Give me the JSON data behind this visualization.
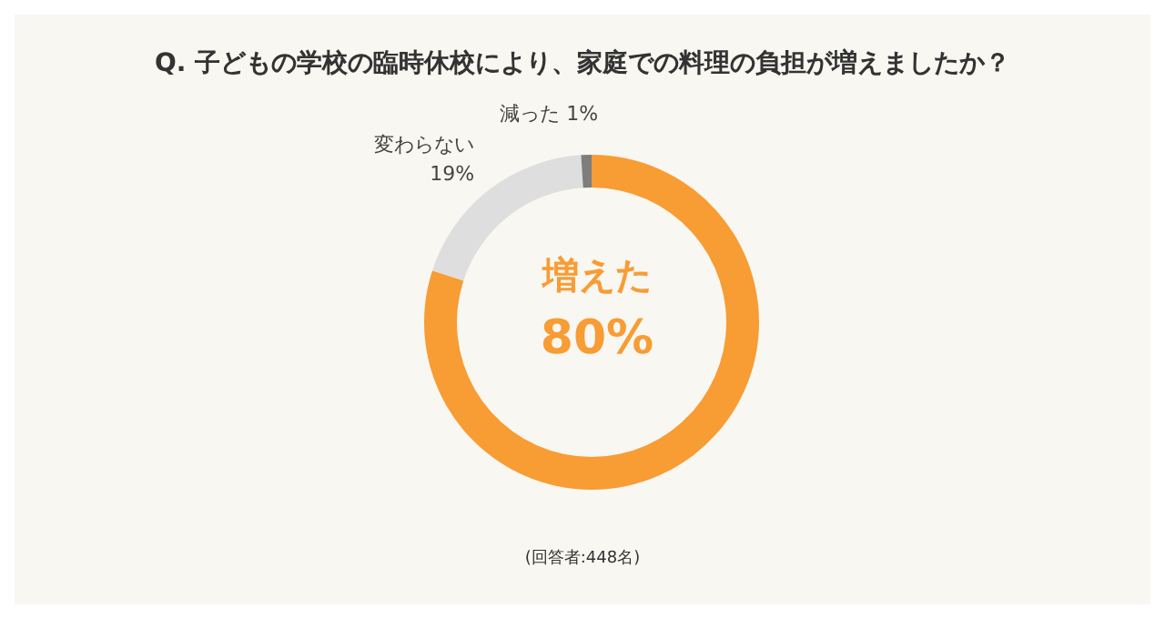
{
  "chart_data": {
    "type": "donut",
    "title": "Q. 子どもの学校の臨時休校により、家庭での料理の負担が増えましたか？",
    "categories": [
      "増えた",
      "変わらない",
      "減った"
    ],
    "values": [
      80,
      19,
      1
    ],
    "value_labels": [
      "80%",
      "19%",
      "1%"
    ],
    "colors": [
      "#f89c34",
      "#dedede",
      "#7d7d7d"
    ],
    "annotations": [
      "(回答者:448名)"
    ],
    "legend": false
  }
}
